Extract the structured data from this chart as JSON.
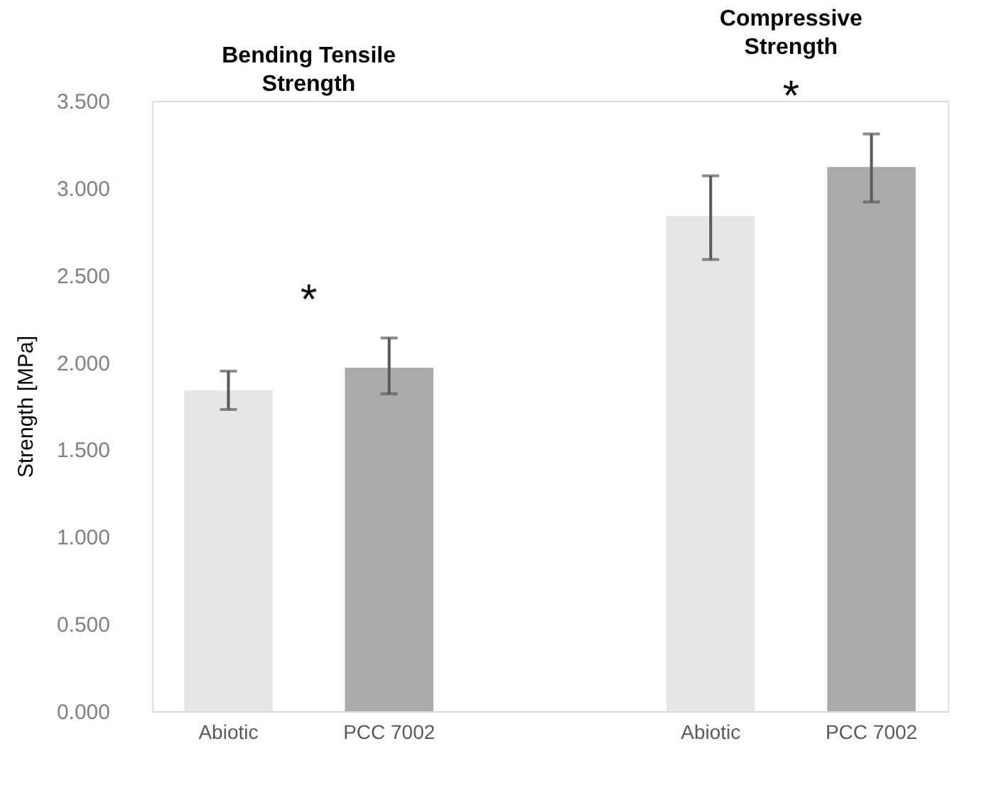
{
  "chart_data": {
    "type": "bar",
    "ylabel": "Strength  [MPa]",
    "categories": [
      "Abiotic",
      "PCC 7002",
      null,
      "Abiotic",
      "PCC 7002"
    ],
    "values": [
      1.84,
      1.97,
      null,
      2.84,
      3.12
    ],
    "colors": [
      "#e6e6e6",
      "#aaaaaa",
      null,
      "#e6e6e6",
      "#aaaaaa"
    ],
    "errors": [
      [
        1.73,
        1.95
      ],
      [
        1.82,
        2.14
      ],
      null,
      [
        2.59,
        3.07
      ],
      [
        2.92,
        3.31
      ]
    ],
    "ylim": [
      0,
      3.5
    ],
    "yticks": [
      {
        "value": 0,
        "label": "0.000"
      },
      {
        "value": 0.5,
        "label": "0.500"
      },
      {
        "value": 1,
        "label": "1.000"
      },
      {
        "value": 1.5,
        "label": "1.500"
      },
      {
        "value": 2,
        "label": "2.000"
      },
      {
        "value": 2.5,
        "label": "2.500"
      },
      {
        "value": 3,
        "label": "3.000"
      },
      {
        "value": 3.5,
        "label": "3.500"
      }
    ],
    "annotations": [
      "Bending Tensile Strength",
      "*",
      "Compressive Strength",
      "*"
    ],
    "grid": false,
    "legend": false
  }
}
